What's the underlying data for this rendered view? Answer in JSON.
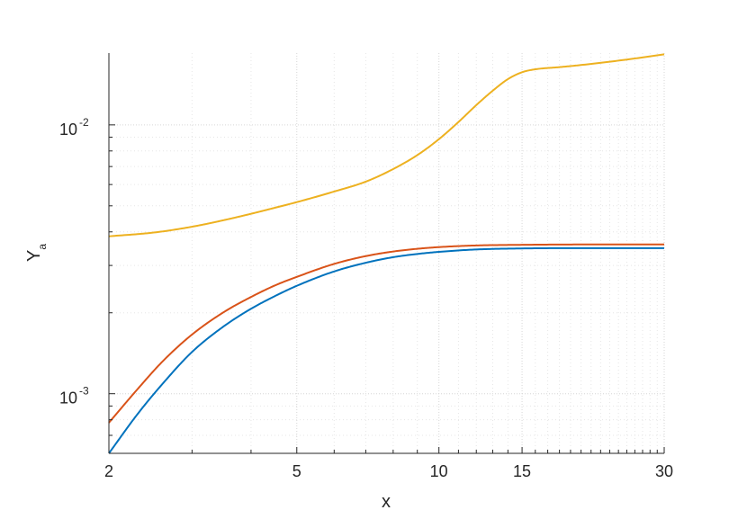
{
  "chart_data": {
    "type": "line",
    "title": "",
    "xlabel": "x",
    "ylabel": {
      "base": "Y",
      "subscript": "a"
    },
    "xscale": "log",
    "yscale": "log",
    "xlim": [
      2,
      30
    ],
    "ylim": [
      0.0006,
      0.0185
    ],
    "xticks": [
      2,
      5,
      10,
      15,
      30
    ],
    "xtick_labels": [
      "2",
      "5",
      "10",
      "15",
      "30"
    ],
    "yticks": [
      0.001,
      0.01
    ],
    "ytick_labels": [
      {
        "base": "10",
        "exp": "-3"
      },
      {
        "base": "10",
        "exp": "-2"
      }
    ],
    "grid": "major and minor, dotted",
    "legend": "none",
    "series": [
      {
        "color": "#0072BD",
        "x": [
          2,
          2.3,
          2.6,
          3,
          3.5,
          4,
          4.5,
          5,
          6,
          7,
          8,
          9,
          10,
          12,
          15,
          20,
          25,
          30
        ],
        "y": [
          0.0006,
          0.00084,
          0.00109,
          0.00143,
          0.00178,
          0.00207,
          0.00231,
          0.00252,
          0.00285,
          0.00307,
          0.00322,
          0.00331,
          0.00337,
          0.00344,
          0.00347,
          0.00348,
          0.00348,
          0.00348
        ]
      },
      {
        "color": "#D95319",
        "x": [
          2,
          2.3,
          2.6,
          3,
          3.5,
          4,
          4.5,
          5,
          6,
          7,
          8,
          9,
          10,
          12,
          15,
          20,
          25,
          30
        ],
        "y": [
          0.00078,
          0.00104,
          0.00132,
          0.00166,
          0.00201,
          0.00229,
          0.00253,
          0.00272,
          0.00304,
          0.00325,
          0.00338,
          0.00346,
          0.00351,
          0.00356,
          0.00358,
          0.00359,
          0.00359,
          0.00359
        ]
      },
      {
        "color": "#EDB120",
        "x": [
          2,
          2.5,
          3,
          3.5,
          4,
          4.5,
          5,
          6,
          7,
          8,
          9,
          10,
          11,
          12,
          13,
          14,
          15,
          16,
          18,
          20,
          25,
          30
        ],
        "y": [
          0.00385,
          0.00398,
          0.00418,
          0.00442,
          0.00467,
          0.00492,
          0.00516,
          0.00565,
          0.00615,
          0.00685,
          0.00772,
          0.00885,
          0.01025,
          0.01185,
          0.0134,
          0.0148,
          0.0157,
          0.0161,
          0.0164,
          0.0167,
          0.0175,
          0.0183
        ]
      }
    ]
  }
}
